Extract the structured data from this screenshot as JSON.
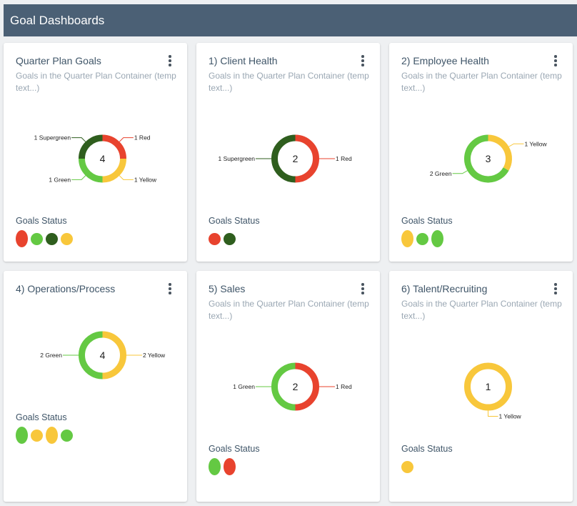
{
  "header": {
    "title": "Goal Dashboards"
  },
  "colors": {
    "red": "#e8432e",
    "green": "#64c943",
    "supergreen": "#2f5e1e",
    "yellow": "#f8c73b"
  },
  "subtitle_text": "Goals in the Quarter Plan Container (temp text...)",
  "status_label": "Goals Status",
  "cards": [
    {
      "title": "Quarter Plan Goals",
      "subtitle": "Goals in the Quarter Plan Container (temp text...)",
      "total": "4",
      "status_label": "Goals Status",
      "segments": [
        {
          "status": "red",
          "count": 1,
          "label": "1 Red"
        },
        {
          "status": "yellow",
          "count": 1,
          "label": "1 Yellow"
        },
        {
          "status": "green",
          "count": 1,
          "label": "1 Green"
        },
        {
          "status": "supergreen",
          "count": 1,
          "label": "1 Supergreen"
        }
      ],
      "status_dots": [
        "red",
        "green",
        "supergreen",
        "yellow"
      ]
    },
    {
      "title": "1) Client Health",
      "subtitle": "Goals in the Quarter Plan Container (temp text...)",
      "total": "2",
      "status_label": "Goals Status",
      "segments": [
        {
          "status": "red",
          "count": 1,
          "label": "1 Red"
        },
        {
          "status": "supergreen",
          "count": 1,
          "label": "1 Supergreen"
        }
      ],
      "status_dots": [
        "red",
        "supergreen"
      ]
    },
    {
      "title": "2) Employee Health",
      "subtitle": "Goals in the Quarter Plan Container (temp text...)",
      "total": "3",
      "status_label": "Goals Status",
      "segments": [
        {
          "status": "yellow",
          "count": 1,
          "label": "1 Yellow"
        },
        {
          "status": "green",
          "count": 2,
          "label": "2 Green"
        }
      ],
      "status_dots": [
        "yellow",
        "green",
        "green"
      ]
    },
    {
      "title": "4) Operations/Process",
      "subtitle": "",
      "total": "4",
      "status_label": "Goals Status",
      "segments": [
        {
          "status": "yellow",
          "count": 2,
          "label": "2 Yellow"
        },
        {
          "status": "green",
          "count": 2,
          "label": "2 Green"
        }
      ],
      "status_dots": [
        "green",
        "yellow",
        "yellow",
        "green"
      ]
    },
    {
      "title": "5) Sales",
      "subtitle": "Goals in the Quarter Plan Container (temp text...)",
      "total": "2",
      "status_label": "Goals Status",
      "segments": [
        {
          "status": "red",
          "count": 1,
          "label": "1 Red"
        },
        {
          "status": "green",
          "count": 1,
          "label": "1 Green"
        }
      ],
      "status_dots": [
        "green",
        "red"
      ]
    },
    {
      "title": "6) Talent/Recruiting",
      "subtitle": "Goals in the Quarter Plan Container (temp text...)",
      "total": "1",
      "status_label": "Goals Status",
      "segments": [
        {
          "status": "yellow",
          "count": 1,
          "label": "1 Yellow"
        }
      ],
      "status_dots": [
        "yellow"
      ]
    }
  ]
}
